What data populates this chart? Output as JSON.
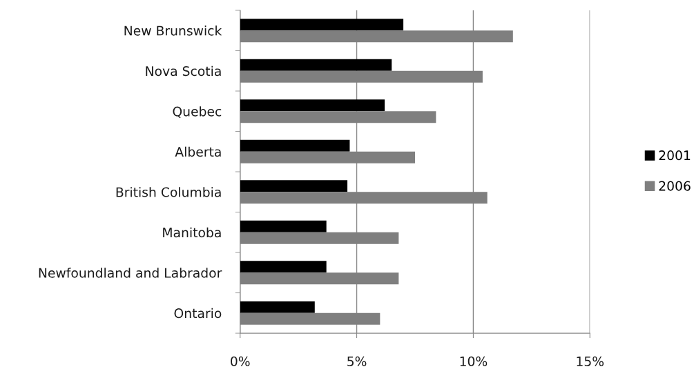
{
  "chart_data": {
    "type": "bar",
    "orientation": "horizontal",
    "categories": [
      "New Brunswick",
      "Nova Scotia",
      "Quebec",
      "Alberta",
      "British Columbia",
      "Manitoba",
      "Newfoundland and Labrador",
      "Ontario"
    ],
    "series": [
      {
        "name": "2001",
        "color": "#000000",
        "values": [
          7.0,
          6.5,
          6.2,
          4.7,
          4.6,
          3.7,
          3.7,
          3.2
        ]
      },
      {
        "name": "2006",
        "color": "#7f7f7f",
        "values": [
          11.7,
          10.4,
          8.4,
          7.5,
          10.6,
          6.8,
          6.8,
          6.0
        ]
      }
    ],
    "xlim": [
      0,
      15
    ],
    "xticks": [
      {
        "value": 0,
        "label": "0%"
      },
      {
        "value": 5,
        "label": "5%"
      },
      {
        "value": 10,
        "label": "10%"
      },
      {
        "value": 15,
        "label": "15%"
      }
    ],
    "grid": "x",
    "legend": "right"
  }
}
